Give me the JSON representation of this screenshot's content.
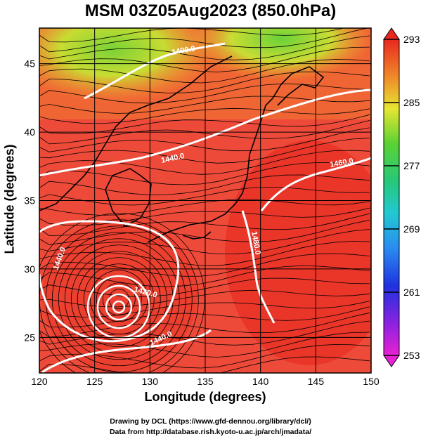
{
  "title": "MSM 03Z05Aug2023 (850.0hPa)",
  "chart_data": {
    "type": "heatmap",
    "xlabel": "Longitude (degrees)",
    "ylabel": "Latitude (degrees)",
    "xlim": [
      120,
      150
    ],
    "ylim": [
      22.4,
      47.6
    ],
    "x_ticks": [
      120,
      125,
      130,
      135,
      140,
      145,
      150
    ],
    "y_ticks": [
      25,
      30,
      35,
      40,
      45
    ],
    "grid": true,
    "colorbar": {
      "min": 253,
      "max": 293,
      "tick_labels": [
        293,
        285,
        277,
        269,
        261,
        253
      ]
    },
    "contour_labels": [
      "1400.0",
      "1440.0",
      "1480.0",
      "1420.0",
      "1460.0",
      "1440.0",
      "1440.0"
    ],
    "cyclone_center": {
      "lon": 127.2,
      "lat": 27.8
    }
  },
  "credits": {
    "line1": "Drawing by DCL (https://www.gfd-dennou.org/library/dcl/)",
    "line2": "Data from http://database.rish.kyoto-u.ac.jp/arch/jmadata/"
  },
  "colors": {
    "warm": "#ee4a3a",
    "hot": "#e8281e",
    "green": "#5ad234",
    "yellow": "#e6e632"
  }
}
